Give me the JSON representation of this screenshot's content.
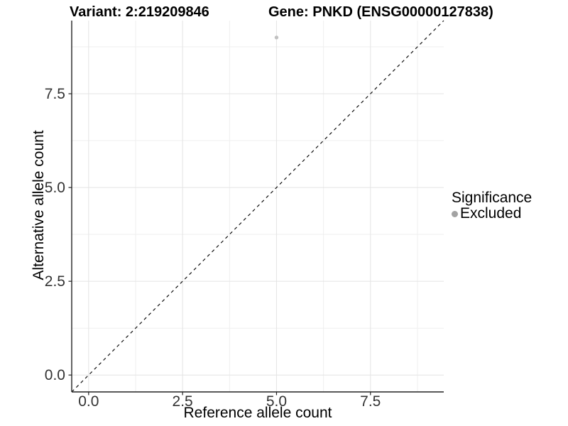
{
  "chart_data": {
    "type": "scatter",
    "title_left": "Variant: 2:219209846",
    "title_right": "Gene: PNKD (ENSG00000127838)",
    "xlabel": "Reference allele count",
    "ylabel": "Alternative allele count",
    "xlim": [
      -0.45,
      9.45
    ],
    "ylim": [
      -0.45,
      9.45
    ],
    "x_ticks": [
      0.0,
      2.5,
      5.0,
      7.5
    ],
    "x_tick_labels": [
      "0.0",
      "2.5",
      "5.0",
      "7.5"
    ],
    "y_ticks": [
      0.0,
      2.5,
      5.0,
      7.5
    ],
    "y_tick_labels": [
      "0.0",
      "2.5",
      "5.0",
      "7.5"
    ],
    "x_minor_ticks": [
      1.25,
      3.75,
      6.25,
      8.75
    ],
    "y_minor_ticks": [
      1.25,
      3.75,
      6.25,
      8.75
    ],
    "grid": true,
    "series": [
      {
        "name": "Excluded",
        "color": "#c1c1c1",
        "points": [
          {
            "x": 5.0,
            "y": 9.0
          }
        ]
      }
    ],
    "reference_line": {
      "type": "identity y=x",
      "style": "dashed",
      "color": "#111111"
    },
    "legend": {
      "position": "right",
      "title": "Significance",
      "entries": [
        {
          "label": "Excluded",
          "key_color": "#a3a3a3"
        }
      ]
    },
    "style": {
      "grid_major_color": "#e4e4e4",
      "grid_minor_color": "#efefef",
      "axis_line_color": "#222222",
      "tick_label_color": "#333333",
      "background": "#ffffff"
    }
  }
}
